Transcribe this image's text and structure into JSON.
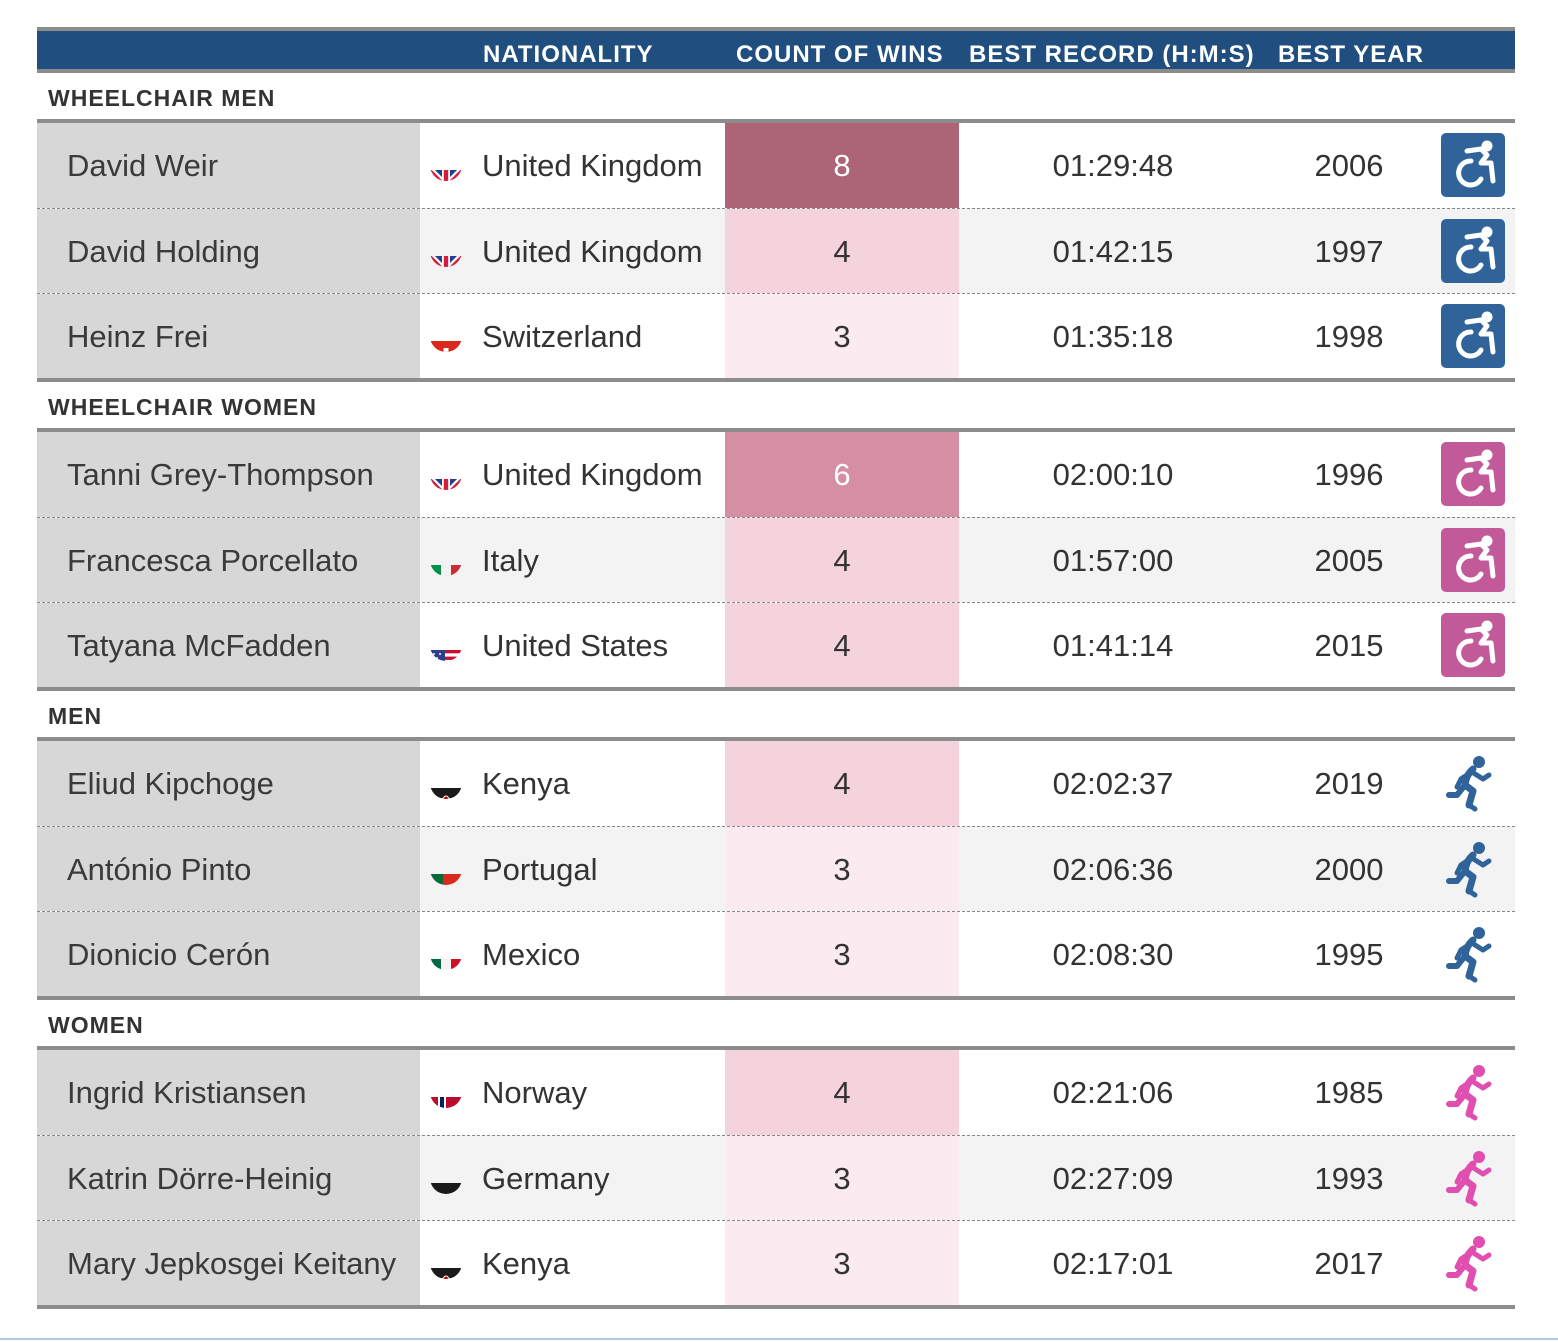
{
  "header": {
    "col_nationality": "NATIONALITY",
    "col_wins": "COUNT OF WINS",
    "col_record": "BEST RECORD (H:M:S)",
    "col_year": "BEST YEAR"
  },
  "colors": {
    "header_bg": "#1f4e7f",
    "wheelchair_men": "#2f6399",
    "wheelchair_women": "#c25a9a",
    "runner_men": "#2f6399",
    "runner_women": "#e04fb0"
  },
  "groups": [
    {
      "label": "WHEELCHAIR MEN",
      "icon": "wheelchair-icon",
      "icon_color": "#2f6399",
      "rows": [
        {
          "name": "David Weir",
          "flag": "uk",
          "nationality": "United Kingdom",
          "wins": "8",
          "record": "01:29:48",
          "year": "2006",
          "wins_bg": "#ac6476",
          "wins_fg": "#ffffff"
        },
        {
          "name": "David Holding",
          "flag": "uk",
          "nationality": "United Kingdom",
          "wins": "4",
          "record": "01:42:15",
          "year": "1997",
          "wins_bg": "#f5d3dd",
          "wins_fg": "#333333"
        },
        {
          "name": "Heinz Frei",
          "flag": "ch",
          "nationality": "Switzerland",
          "wins": "3",
          "record": "01:35:18",
          "year": "1998",
          "wins_bg": "#fbeaf0",
          "wins_fg": "#333333"
        }
      ]
    },
    {
      "label": "WHEELCHAIR WOMEN",
      "icon": "wheelchair-icon",
      "icon_color": "#c25a9a",
      "rows": [
        {
          "name": "Tanni Grey-Thompson",
          "flag": "uk",
          "nationality": "United Kingdom",
          "wins": "6",
          "record": "02:00:10",
          "year": "1996",
          "wins_bg": "#d68fa2",
          "wins_fg": "#ffffff"
        },
        {
          "name": "Francesca Porcellato",
          "flag": "it",
          "nationality": "Italy",
          "wins": "4",
          "record": "01:57:00",
          "year": "2005",
          "wins_bg": "#f5d3dd",
          "wins_fg": "#333333"
        },
        {
          "name": "Tatyana McFadden",
          "flag": "us",
          "nationality": "United States",
          "wins": "4",
          "record": "01:41:14",
          "year": "2015",
          "wins_bg": "#f5d3dd",
          "wins_fg": "#333333"
        }
      ]
    },
    {
      "label": "MEN",
      "icon": "runner-icon",
      "icon_color": "#2f6399",
      "rows": [
        {
          "name": "Eliud Kipchoge",
          "flag": "ke",
          "nationality": "Kenya",
          "wins": "4",
          "record": "02:02:37",
          "year": "2019",
          "wins_bg": "#f5d3dd",
          "wins_fg": "#333333"
        },
        {
          "name": "António Pinto",
          "flag": "pt",
          "nationality": "Portugal",
          "wins": "3",
          "record": "02:06:36",
          "year": "2000",
          "wins_bg": "#fbeaf0",
          "wins_fg": "#333333"
        },
        {
          "name": "Dionicio Cerón",
          "flag": "mx",
          "nationality": "Mexico",
          "wins": "3",
          "record": "02:08:30",
          "year": "1995",
          "wins_bg": "#fbeaf0",
          "wins_fg": "#333333"
        }
      ]
    },
    {
      "label": "WOMEN",
      "icon": "runner-icon",
      "icon_color": "#e04fb0",
      "rows": [
        {
          "name": "Ingrid Kristiansen",
          "flag": "no",
          "nationality": "Norway",
          "wins": "4",
          "record": "02:21:06",
          "year": "1985",
          "wins_bg": "#f5d3dd",
          "wins_fg": "#333333"
        },
        {
          "name": "Katrin Dörre-Heinig",
          "flag": "de",
          "nationality": "Germany",
          "wins": "3",
          "record": "02:27:09",
          "year": "1993",
          "wins_bg": "#fbeaf0",
          "wins_fg": "#333333"
        },
        {
          "name": "Mary Jepkosgei Keitany",
          "flag": "ke",
          "nationality": "Kenya",
          "wins": "3",
          "record": "02:17:01",
          "year": "2017",
          "wins_bg": "#fbeaf0",
          "wins_fg": "#333333"
        }
      ]
    }
  ]
}
